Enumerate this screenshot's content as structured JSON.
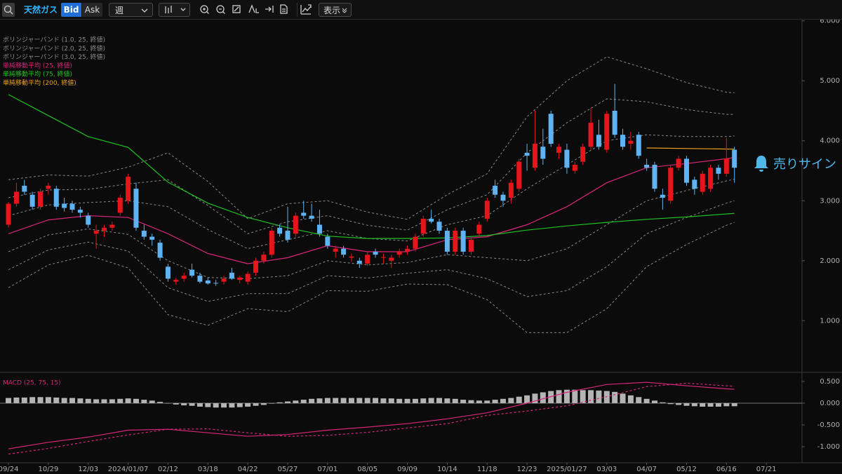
{
  "toolbar": {
    "symbol": "天然ガス",
    "bid": "Bid",
    "ask": "Ask",
    "interval": "週",
    "display": "表示"
  },
  "signal_label": "売りサイン",
  "chart_data": [
    {
      "type": "candlestick",
      "up_color": "#e8141c",
      "down_color": "#5fb3f2",
      "xlim": [
        -1.06,
        99.47
      ],
      "ylim": [
        0.15,
        6.02
      ],
      "yticks": [
        {
          "value": 1,
          "label": "1.000"
        },
        {
          "value": 2,
          "label": "2.000"
        },
        {
          "value": 3,
          "label": "3.000"
        },
        {
          "value": 4,
          "label": "4.000"
        },
        {
          "value": 5,
          "label": "5.000"
        },
        {
          "value": 6,
          "label": "6.000"
        }
      ],
      "open": [
        2.6,
        2.95,
        3.25,
        3.1,
        2.9,
        3.2,
        3.2,
        2.95,
        2.95,
        2.85,
        2.75,
        2.45,
        2.5,
        2.55,
        2.8,
        3.0,
        3.2,
        2.5,
        2.4,
        2.3,
        1.9,
        1.65,
        1.7,
        1.85,
        1.75,
        1.67,
        1.63,
        1.65,
        1.8,
        1.68,
        1.65,
        1.8,
        2.0,
        2.1,
        2.55,
        2.5,
        2.45,
        2.8,
        2.75,
        2.6,
        2.4,
        2.15,
        2.2,
        2.05,
        2.0,
        1.95,
        2.15,
        2.05,
        2.0,
        2.1,
        2.15,
        2.2,
        2.45,
        2.7,
        2.65,
        2.5,
        2.15,
        2.5,
        2.15,
        2.45,
        2.7,
        3.25,
        3.1,
        3.05,
        3.2,
        3.8,
        3.55,
        3.9,
        4.45,
        3.8,
        3.85,
        3.5,
        3.65,
        3.9,
        4.1,
        3.85,
        4.5,
        4.1,
        3.95,
        4.1,
        3.6,
        3.6,
        3.1,
        3.0,
        3.55,
        3.7,
        3.35,
        3.15,
        3.2,
        3.55,
        3.45,
        3.85
      ],
      "high": [
        2.98,
        3.3,
        3.35,
        3.15,
        3.2,
        3.3,
        3.25,
        3.05,
        3.0,
        2.9,
        2.8,
        2.6,
        2.6,
        2.65,
        3.1,
        3.45,
        3.3,
        2.6,
        2.45,
        2.35,
        1.95,
        1.72,
        1.8,
        1.95,
        1.8,
        1.72,
        1.68,
        1.75,
        1.88,
        1.75,
        1.82,
        2.05,
        2.15,
        2.55,
        2.6,
        2.9,
        2.8,
        3.0,
        2.95,
        2.85,
        2.45,
        2.25,
        2.25,
        2.12,
        2.05,
        2.15,
        2.2,
        2.12,
        2.1,
        2.2,
        2.25,
        2.45,
        2.75,
        2.85,
        2.7,
        2.55,
        2.55,
        2.55,
        2.4,
        2.65,
        3.05,
        3.35,
        3.15,
        3.35,
        3.7,
        3.95,
        4.5,
        4.2,
        4.5,
        3.95,
        3.95,
        3.65,
        3.95,
        4.55,
        4.35,
        4.5,
        4.95,
        4.2,
        4.15,
        4.15,
        3.7,
        3.65,
        3.2,
        3.6,
        3.75,
        3.75,
        3.4,
        3.5,
        3.6,
        3.6,
        4.05,
        3.9
      ],
      "low": [
        2.55,
        2.9,
        3.1,
        2.85,
        2.85,
        3.1,
        2.85,
        2.82,
        2.8,
        2.72,
        2.55,
        2.2,
        2.4,
        2.5,
        2.75,
        2.95,
        2.5,
        2.35,
        2.25,
        2.0,
        1.65,
        1.6,
        1.65,
        1.72,
        1.62,
        1.6,
        1.58,
        1.6,
        1.68,
        1.62,
        1.6,
        1.75,
        1.95,
        2.05,
        2.4,
        2.3,
        2.4,
        2.7,
        2.65,
        2.4,
        2.2,
        2.05,
        2.05,
        1.98,
        1.88,
        1.92,
        2.05,
        1.95,
        1.88,
        2.05,
        2.1,
        2.15,
        2.4,
        2.62,
        2.45,
        2.1,
        2.1,
        2.1,
        2.1,
        2.4,
        2.65,
        3.05,
        2.9,
        2.95,
        3.15,
        3.5,
        3.5,
        3.6,
        3.9,
        3.7,
        3.45,
        3.45,
        3.6,
        3.85,
        3.85,
        3.8,
        4.05,
        3.85,
        3.85,
        3.7,
        3.5,
        3.15,
        2.85,
        2.95,
        3.5,
        3.25,
        3.1,
        3.1,
        3.15,
        3.35,
        3.4,
        3.3
      ],
      "close": [
        2.95,
        3.15,
        3.15,
        2.9,
        3.15,
        3.25,
        2.9,
        2.88,
        2.85,
        2.8,
        2.6,
        2.5,
        2.55,
        2.6,
        3.05,
        3.4,
        2.55,
        2.4,
        2.35,
        2.05,
        1.7,
        1.68,
        1.75,
        1.75,
        1.65,
        1.62,
        1.62,
        1.7,
        1.7,
        1.72,
        1.78,
        2.0,
        2.1,
        2.5,
        2.45,
        2.35,
        2.75,
        2.75,
        2.7,
        2.45,
        2.25,
        2.2,
        2.1,
        2.07,
        1.95,
        2.1,
        2.1,
        2.06,
        2.05,
        2.15,
        2.2,
        2.4,
        2.7,
        2.65,
        2.5,
        2.15,
        2.5,
        2.15,
        2.35,
        2.6,
        3.0,
        3.1,
        3.0,
        3.3,
        3.65,
        3.75,
        3.95,
        3.7,
        3.95,
        3.9,
        3.55,
        3.6,
        3.9,
        4.3,
        3.9,
        4.45,
        4.1,
        3.9,
        4.0,
        3.75,
        3.55,
        3.2,
        3.05,
        3.55,
        3.7,
        3.3,
        3.2,
        3.45,
        3.55,
        3.45,
        3.7,
        3.55
      ],
      "series": [
        {
          "name": "ボリンジャーバンド (1.0, 25, 終値)",
          "color": "#8a8a8a",
          "style": "dashed",
          "x": [
            0,
            5,
            10,
            15,
            20,
            25,
            30,
            35,
            40,
            45,
            50,
            55,
            60,
            65,
            70,
            75,
            80,
            85,
            90,
            91
          ],
          "upper": [
            2.75,
            2.93,
            2.97,
            3.0,
            2.9,
            2.52,
            2.2,
            2.35,
            2.5,
            2.37,
            2.33,
            2.6,
            2.75,
            3.2,
            3.6,
            4.0,
            4.1,
            4.07,
            4.07,
            4.08
          ],
          "lower": [
            2.15,
            2.43,
            2.53,
            2.44,
            2.0,
            1.72,
            1.7,
            1.75,
            2.0,
            1.93,
            1.97,
            2.1,
            2.05,
            2.0,
            2.2,
            2.6,
            3.0,
            3.17,
            3.33,
            3.36
          ]
        },
        {
          "name": "ボリンジャーバンド (2.0, 25, 終値)",
          "color": "#8a8a8a",
          "style": "dashed",
          "x": [
            0,
            5,
            10,
            15,
            20,
            25,
            30,
            35,
            40,
            45,
            50,
            55,
            60,
            65,
            70,
            75,
            80,
            85,
            90,
            91
          ],
          "upper": [
            3.05,
            3.18,
            3.19,
            3.28,
            3.35,
            2.92,
            2.45,
            2.65,
            2.75,
            2.59,
            2.51,
            2.85,
            3.1,
            3.8,
            4.3,
            4.7,
            4.65,
            4.52,
            4.44,
            4.44
          ],
          "lower": [
            1.85,
            2.18,
            2.31,
            2.16,
            1.55,
            1.32,
            1.45,
            1.45,
            1.75,
            1.71,
            1.79,
            1.85,
            1.7,
            1.4,
            1.5,
            1.9,
            2.45,
            2.72,
            2.96,
            3.0
          ]
        },
        {
          "name": "ボリンジャーバンド (3.0, 25, 終値)",
          "color": "#8a8a8a",
          "style": "dashed",
          "x": [
            0,
            5,
            10,
            15,
            20,
            25,
            30,
            35,
            40,
            45,
            50,
            55,
            60,
            65,
            70,
            75,
            80,
            85,
            90,
            91
          ],
          "upper": [
            3.35,
            3.43,
            3.41,
            3.56,
            3.8,
            3.32,
            2.7,
            2.95,
            3.0,
            2.81,
            2.69,
            3.1,
            3.45,
            4.4,
            5.0,
            5.4,
            5.2,
            4.97,
            4.81,
            4.8
          ],
          "lower": [
            1.55,
            1.93,
            2.09,
            1.88,
            1.1,
            0.92,
            1.2,
            1.15,
            1.5,
            1.49,
            1.61,
            1.6,
            1.35,
            0.8,
            0.8,
            1.2,
            1.9,
            2.27,
            2.59,
            2.64
          ]
        },
        {
          "name": "単純移動平均 (25, 終値)",
          "color": "#d6267a",
          "style": "solid",
          "x": [
            0,
            5,
            10,
            15,
            20,
            25,
            30,
            35,
            40,
            45,
            50,
            55,
            60,
            65,
            70,
            75,
            80,
            85,
            90,
            91
          ],
          "values": [
            2.45,
            2.68,
            2.75,
            2.72,
            2.45,
            2.12,
            1.95,
            2.05,
            2.25,
            2.15,
            2.15,
            2.35,
            2.4,
            2.6,
            2.9,
            3.3,
            3.55,
            3.62,
            3.7,
            3.72
          ]
        },
        {
          "name": "単純移動平均 (75, 終値)",
          "color": "#1fc21f",
          "style": "solid",
          "x": [
            0,
            5,
            10,
            15,
            20,
            25,
            30,
            35,
            40,
            45,
            50,
            55,
            60,
            65,
            70,
            75,
            80,
            85,
            90,
            91
          ],
          "values": [
            4.77,
            4.42,
            4.07,
            3.89,
            3.31,
            2.96,
            2.72,
            2.55,
            2.41,
            2.37,
            2.37,
            2.38,
            2.42,
            2.51,
            2.58,
            2.64,
            2.69,
            2.73,
            2.78,
            2.79
          ]
        },
        {
          "name": "単純移動平均 (200, 終値)",
          "color": "#e8a020",
          "style": "solid",
          "x": [
            80,
            91
          ],
          "values": [
            3.88,
            3.86
          ]
        }
      ]
    },
    {
      "type": "macd",
      "title": "MACD (25, 75, 15)",
      "title_color": "#d6267a",
      "bar_color": "#b4b4b4",
      "xlim": [
        -1.06,
        99.47
      ],
      "ylim": [
        -1.37,
        0.645
      ],
      "yticks": [
        {
          "value": -1,
          "label": "-1.000"
        },
        {
          "value": -0.5,
          "label": "-0.500"
        },
        {
          "value": 0,
          "label": "0.000"
        },
        {
          "value": 0.5,
          "label": "0.500"
        }
      ],
      "xticks": [
        {
          "value": 0,
          "label": "09/24"
        },
        {
          "value": 5,
          "label": "10/29"
        },
        {
          "value": 10,
          "label": "12/03"
        },
        {
          "value": 15,
          "label": "2024/01/07"
        },
        {
          "value": 20,
          "label": "02/12"
        },
        {
          "value": 25,
          "label": "03/18"
        },
        {
          "value": 30,
          "label": "04/22"
        },
        {
          "value": 35,
          "label": "05/27"
        },
        {
          "value": 40,
          "label": "07/01"
        },
        {
          "value": 45,
          "label": "08/05"
        },
        {
          "value": 50,
          "label": "09/09"
        },
        {
          "value": 55,
          "label": "10/14"
        },
        {
          "value": 60,
          "label": "11/18"
        },
        {
          "value": 65,
          "label": "12/23"
        },
        {
          "value": 70,
          "label": "2025/01/27"
        },
        {
          "value": 75,
          "label": "03/03"
        },
        {
          "value": 80,
          "label": "04/07"
        },
        {
          "value": 85,
          "label": "05/12"
        },
        {
          "value": 90,
          "label": "06/16"
        },
        {
          "value": 95,
          "label": "07/21"
        }
      ],
      "histogram": [
        0.12,
        0.13,
        0.13,
        0.14,
        0.14,
        0.14,
        0.13,
        0.12,
        0.12,
        0.11,
        0.1,
        0.09,
        0.09,
        0.09,
        0.1,
        0.11,
        0.1,
        0.08,
        0.06,
        0.03,
        0.0,
        -0.03,
        -0.05,
        -0.06,
        -0.08,
        -0.09,
        -0.1,
        -0.1,
        -0.1,
        -0.09,
        -0.08,
        -0.06,
        -0.04,
        -0.01,
        0.02,
        0.04,
        0.06,
        0.08,
        0.1,
        0.11,
        0.12,
        0.12,
        0.12,
        0.12,
        0.12,
        0.12,
        0.12,
        0.11,
        0.11,
        0.1,
        0.1,
        0.1,
        0.11,
        0.12,
        0.12,
        0.11,
        0.1,
        0.08,
        0.07,
        0.06,
        0.06,
        0.08,
        0.1,
        0.12,
        0.15,
        0.18,
        0.22,
        0.25,
        0.28,
        0.3,
        0.31,
        0.31,
        0.3,
        0.3,
        0.29,
        0.28,
        0.26,
        0.22,
        0.18,
        0.14,
        0.1,
        0.06,
        0.02,
        -0.02,
        -0.04,
        -0.06,
        -0.07,
        -0.08,
        -0.08,
        -0.08,
        -0.07,
        -0.07
      ],
      "series": [
        {
          "color": "#d6267a",
          "style": "solid",
          "x": [
            0,
            5,
            10,
            15,
            20,
            25,
            30,
            35,
            40,
            45,
            50,
            55,
            60,
            65,
            70,
            75,
            80,
            85,
            90,
            91
          ],
          "values": [
            -1.05,
            -0.9,
            -0.78,
            -0.62,
            -0.6,
            -0.68,
            -0.76,
            -0.72,
            -0.62,
            -0.55,
            -0.47,
            -0.36,
            -0.22,
            0.0,
            0.25,
            0.43,
            0.48,
            0.4,
            0.33,
            0.32
          ]
        },
        {
          "color": "#d6267a",
          "style": "dashed",
          "x": [
            0,
            5,
            10,
            15,
            20,
            25,
            30,
            35,
            40,
            45,
            50,
            55,
            60,
            65,
            70,
            75,
            80,
            85,
            90,
            91
          ],
          "values": [
            -1.17,
            -1.04,
            -0.88,
            -0.73,
            -0.6,
            -0.59,
            -0.68,
            -0.76,
            -0.74,
            -0.67,
            -0.57,
            -0.47,
            -0.28,
            -0.18,
            -0.06,
            0.15,
            0.38,
            0.46,
            0.4,
            0.39
          ]
        }
      ]
    }
  ]
}
